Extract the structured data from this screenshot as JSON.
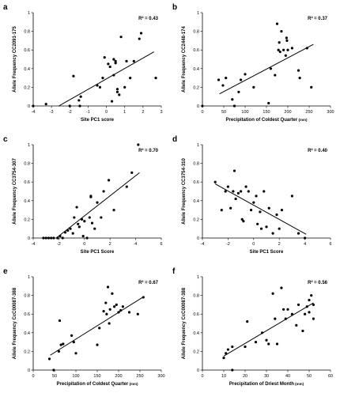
{
  "chart_data": [
    {
      "letter": "a",
      "type": "scatter",
      "xlabel": "Site PC1 score",
      "ylabel": "Allele Frequency CC2091-175",
      "annotation": "R² = 0.43",
      "xlim": [
        -4,
        3
      ],
      "xticks": [
        -4,
        -3,
        -2,
        -1,
        0,
        1,
        2,
        3
      ],
      "ylim": [
        0,
        1
      ],
      "yticks": [
        0,
        0.2,
        0.4,
        0.6,
        0.8,
        1
      ],
      "fit": {
        "x": [
          -2.6,
          2.6
        ],
        "y": [
          0.0,
          0.58
        ]
      },
      "points": [
        [
          -4,
          0
        ],
        [
          -3.3,
          0.02
        ],
        [
          -2.0,
          0.0
        ],
        [
          -1.8,
          0.32
        ],
        [
          -1.5,
          0.06
        ],
        [
          -1.4,
          0.1
        ],
        [
          -1.45,
          0.0
        ],
        [
          -0.5,
          0.22
        ],
        [
          -0.35,
          0.2
        ],
        [
          -0.1,
          0.52
        ],
        [
          -0.2,
          0.3
        ],
        [
          0.1,
          0.45
        ],
        [
          0.2,
          0.42
        ],
        [
          0.4,
          0.5
        ],
        [
          0.5,
          0.46
        ],
        [
          0.5,
          0.48
        ],
        [
          0.6,
          0.15
        ],
        [
          0.7,
          0.12
        ],
        [
          0.8,
          0.74
        ],
        [
          1.1,
          0.48
        ],
        [
          1.3,
          0.3
        ],
        [
          1.5,
          0.48
        ],
        [
          1.8,
          0.72
        ],
        [
          1.9,
          0.78
        ],
        [
          2.7,
          0.3
        ],
        [
          0.3,
          0.05
        ],
        [
          0.6,
          0.18
        ],
        [
          0.4,
          0.33
        ],
        [
          1.0,
          0.2
        ]
      ]
    },
    {
      "letter": "b",
      "type": "scatter",
      "xlabel": "Precipitation of Coldest Quarter",
      "xunit": "(mm)",
      "ylabel": "Allele Frequency CC2448-174",
      "annotation": "R² = 0.37",
      "xlim": [
        0,
        300
      ],
      "xticks": [
        0,
        50,
        100,
        150,
        200,
        250,
        300
      ],
      "ylim": [
        0,
        1
      ],
      "yticks": [
        0,
        0.2,
        0.4,
        0.6,
        0.8,
        1
      ],
      "fit": {
        "x": [
          40,
          260
        ],
        "y": [
          0.13,
          0.66
        ]
      },
      "points": [
        [
          38,
          0.28
        ],
        [
          48,
          0.22
        ],
        [
          55,
          0.3
        ],
        [
          70,
          0.07
        ],
        [
          75,
          0.0
        ],
        [
          85,
          0.15
        ],
        [
          90,
          0.28
        ],
        [
          100,
          0.34
        ],
        [
          120,
          0.2
        ],
        [
          155,
          0.03
        ],
        [
          160,
          0.4
        ],
        [
          170,
          0.33
        ],
        [
          175,
          0.88
        ],
        [
          178,
          0.6
        ],
        [
          180,
          0.68
        ],
        [
          182,
          0.58
        ],
        [
          185,
          0.8
        ],
        [
          190,
          0.6
        ],
        [
          195,
          0.54
        ],
        [
          197,
          0.73
        ],
        [
          198,
          0.7
        ],
        [
          200,
          0.6
        ],
        [
          210,
          0.62
        ],
        [
          225,
          0.38
        ],
        [
          228,
          0.3
        ],
        [
          245,
          0.62
        ],
        [
          255,
          0.2
        ],
        [
          0,
          0.0
        ]
      ]
    },
    {
      "letter": "c",
      "type": "scatter",
      "xlabel": "Site PC1 Score",
      "ylabel": "Allele Frequency CC3754-307",
      "annotation": "R² = 0.70",
      "xlim": [
        -4,
        6
      ],
      "xticks": [
        -4,
        -2,
        0,
        2,
        4,
        6
      ],
      "ylim": [
        0,
        1
      ],
      "yticks": [
        0,
        0.2,
        0.4,
        0.6,
        0.8,
        1
      ],
      "fit": {
        "x": [
          -2.2,
          4.3
        ],
        "y": [
          0.0,
          0.7
        ]
      },
      "points": [
        [
          -3.2,
          0
        ],
        [
          -3.0,
          0
        ],
        [
          -2.8,
          0
        ],
        [
          -2.6,
          0
        ],
        [
          -2.4,
          0
        ],
        [
          -2.1,
          0
        ],
        [
          -1.9,
          0.02
        ],
        [
          -1.7,
          0.0
        ],
        [
          -1.5,
          0.06
        ],
        [
          -1.3,
          0.08
        ],
        [
          -1.1,
          0.1
        ],
        [
          -0.8,
          0.22
        ],
        [
          -0.6,
          0.33
        ],
        [
          -0.5,
          0.15
        ],
        [
          -0.4,
          0.12
        ],
        [
          -0.2,
          0.2
        ],
        [
          -0.1,
          0.02
        ],
        [
          0.0,
          0.18
        ],
        [
          0.2,
          0.0
        ],
        [
          0.4,
          0.22
        ],
        [
          0.5,
          0.44
        ],
        [
          0.6,
          0.16
        ],
        [
          0.8,
          0.1
        ],
        [
          1.0,
          0.38
        ],
        [
          1.3,
          0.22
        ],
        [
          1.5,
          0.5
        ],
        [
          1.9,
          0.62
        ],
        [
          2.3,
          0.3
        ],
        [
          3.3,
          0.55
        ],
        [
          3.7,
          0.7
        ],
        [
          4.2,
          1.0
        ],
        [
          0.5,
          0.45
        ],
        [
          -0.9,
          0.05
        ]
      ]
    },
    {
      "letter": "d",
      "type": "scatter",
      "xlabel": "Site PC1 Score",
      "ylabel": "Allele Frequency CC3754-310",
      "annotation": "R² = 0.40",
      "xlim": [
        -4,
        6
      ],
      "xticks": [
        -4,
        -2,
        0,
        2,
        4,
        6
      ],
      "ylim": [
        0,
        1
      ],
      "yticks": [
        0,
        0.2,
        0.4,
        0.6,
        0.8,
        1
      ],
      "fit": {
        "x": [
          -3.0,
          4.1
        ],
        "y": [
          0.58,
          0.04
        ]
      },
      "points": [
        [
          -3.0,
          0.6
        ],
        [
          -2.5,
          0.3
        ],
        [
          -2.2,
          0.5
        ],
        [
          -2.0,
          0.55
        ],
        [
          -1.8,
          0.32
        ],
        [
          -1.6,
          0.5
        ],
        [
          -1.5,
          0.72
        ],
        [
          -1.4,
          0.42
        ],
        [
          -1.2,
          0.48
        ],
        [
          -1.0,
          0.5
        ],
        [
          -0.9,
          0.2
        ],
        [
          -0.8,
          0.18
        ],
        [
          -0.6,
          0.55
        ],
        [
          -0.4,
          0.5
        ],
        [
          -0.2,
          0.3
        ],
        [
          0.0,
          0.38
        ],
        [
          0.2,
          0.45
        ],
        [
          0.3,
          0.15
        ],
        [
          0.5,
          0.28
        ],
        [
          0.6,
          0.1
        ],
        [
          0.8,
          0.5
        ],
        [
          1.0,
          0.12
        ],
        [
          1.2,
          0.32
        ],
        [
          1.5,
          0.05
        ],
        [
          1.8,
          0.25
        ],
        [
          2.0,
          0.1
        ],
        [
          2.2,
          0.3
        ],
        [
          3.0,
          0.45
        ],
        [
          4.0,
          0.0
        ],
        [
          3.5,
          0.05
        ]
      ]
    },
    {
      "letter": "e",
      "type": "scatter",
      "xlabel": "Precipitation of Coldest Quarter",
      "xunit": "(mm)",
      "ylabel": "CcC00087-388",
      "ylabel_prefix": "Allele Frequency",
      "annotation": "R² = 0.67",
      "xlim": [
        0,
        300
      ],
      "xticks": [
        0,
        50,
        100,
        150,
        200,
        250,
        300
      ],
      "ylim": [
        0,
        1
      ],
      "yticks": [
        0,
        0.2,
        0.4,
        0.6,
        0.8,
        1
      ],
      "fit": {
        "x": [
          40,
          260
        ],
        "y": [
          0.16,
          0.79
        ]
      },
      "points": [
        [
          38,
          0.12
        ],
        [
          48,
          0.0
        ],
        [
          60,
          0.2
        ],
        [
          62,
          0.53
        ],
        [
          65,
          0.27
        ],
        [
          70,
          0.28
        ],
        [
          90,
          0.37
        ],
        [
          95,
          0.3
        ],
        [
          100,
          0.18
        ],
        [
          150,
          0.27
        ],
        [
          155,
          0.45
        ],
        [
          165,
          0.63
        ],
        [
          170,
          0.72
        ],
        [
          172,
          0.6
        ],
        [
          175,
          0.89
        ],
        [
          178,
          0.5
        ],
        [
          180,
          0.65
        ],
        [
          185,
          0.82
        ],
        [
          190,
          0.68
        ],
        [
          195,
          0.7
        ],
        [
          200,
          0.62
        ],
        [
          205,
          0.64
        ],
        [
          210,
          0.68
        ],
        [
          225,
          0.62
        ],
        [
          245,
          0.6
        ],
        [
          258,
          0.78
        ]
      ]
    },
    {
      "letter": "f",
      "type": "scatter",
      "xlabel": "Precipitation of Driest Month",
      "xunit": "(mm)",
      "ylabel": "CcC00087-388",
      "ylabel_prefix": "Allele Frequency",
      "annotation": "R² = 0.56",
      "xlim": [
        0,
        60
      ],
      "xticks": [
        0,
        10,
        20,
        30,
        40,
        50,
        60
      ],
      "ylim": [
        0,
        1
      ],
      "yticks": [
        0,
        0.2,
        0.4,
        0.6,
        0.8,
        1
      ],
      "fit": {
        "x": [
          10,
          52
        ],
        "y": [
          0.15,
          0.72
        ]
      },
      "points": [
        [
          10,
          0.13
        ],
        [
          11,
          0.18
        ],
        [
          12,
          0.22
        ],
        [
          14,
          0.0
        ],
        [
          14,
          0.25
        ],
        [
          20,
          0.25
        ],
        [
          21,
          0.52
        ],
        [
          25,
          0.3
        ],
        [
          28,
          0.4
        ],
        [
          30,
          0.32
        ],
        [
          31,
          0.28
        ],
        [
          33,
          0.82
        ],
        [
          34,
          0.55
        ],
        [
          35,
          0.28
        ],
        [
          37,
          0.88
        ],
        [
          38,
          0.65
        ],
        [
          39,
          0.55
        ],
        [
          40,
          0.65
        ],
        [
          42,
          0.6
        ],
        [
          44,
          0.48
        ],
        [
          45,
          0.7
        ],
        [
          47,
          0.42
        ],
        [
          48,
          0.6
        ],
        [
          49,
          0.68
        ],
        [
          50,
          0.62
        ],
        [
          50,
          0.75
        ],
        [
          51,
          0.8
        ],
        [
          52,
          0.55
        ],
        [
          52,
          0.7
        ]
      ]
    }
  ]
}
